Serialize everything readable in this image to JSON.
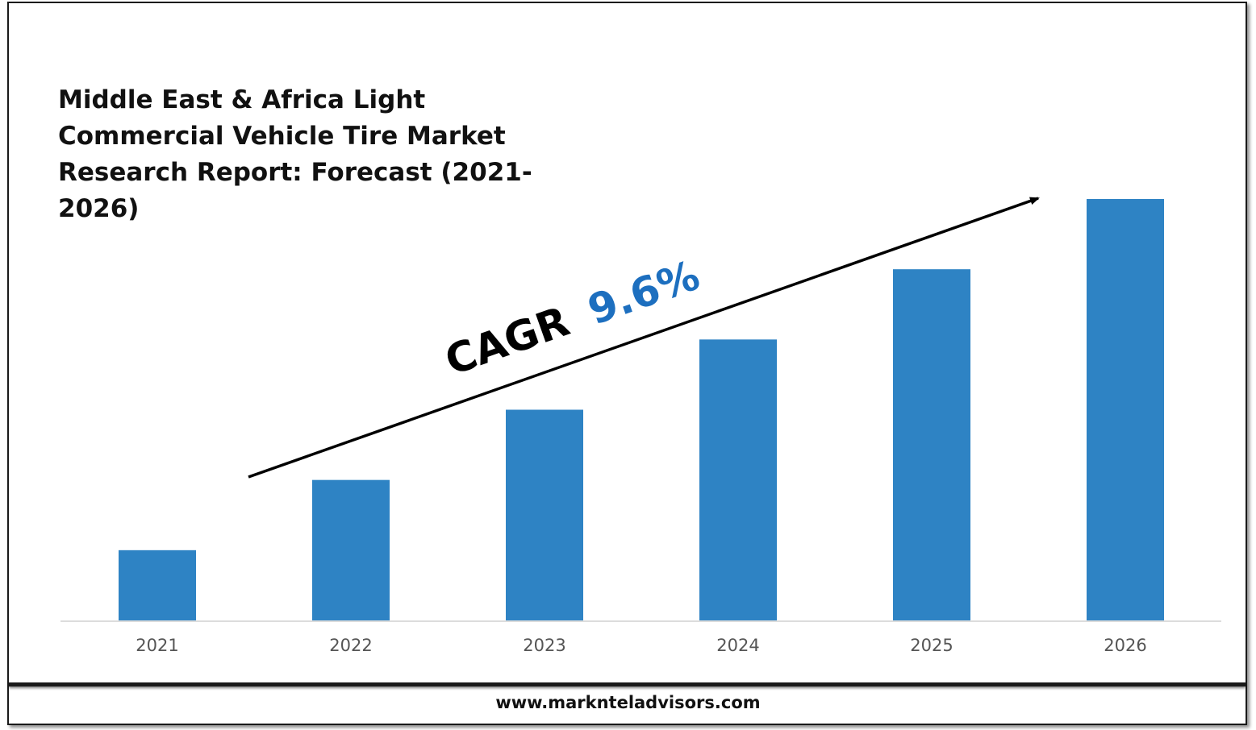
{
  "title": "Middle East & Africa Light Commercial Vehicle Tire Market Research Report: Forecast (2021-2026)",
  "footer": {
    "website": "www.marknteladvisors.com"
  },
  "cagr": {
    "label": "CAGR",
    "value": "9.6%"
  },
  "colors": {
    "bar": "#2e83c4",
    "cagr_value": "#1d6fbf",
    "axis": "#d0d0d0",
    "tick_label": "#555555"
  },
  "chart_data": {
    "type": "bar",
    "categories": [
      "2021",
      "2022",
      "2023",
      "2024",
      "2025",
      "2026"
    ],
    "values": [
      1.0,
      2.0,
      3.0,
      4.0,
      5.0,
      6.0
    ],
    "title": "Middle East & Africa Light Commercial Vehicle Tire Market Research Report: Forecast (2021-2026)",
    "xlabel": "",
    "ylabel": "",
    "ylim": [
      0,
      6.0
    ],
    "grid": false,
    "legend": "none",
    "annotation": "CAGR 9.6%"
  }
}
